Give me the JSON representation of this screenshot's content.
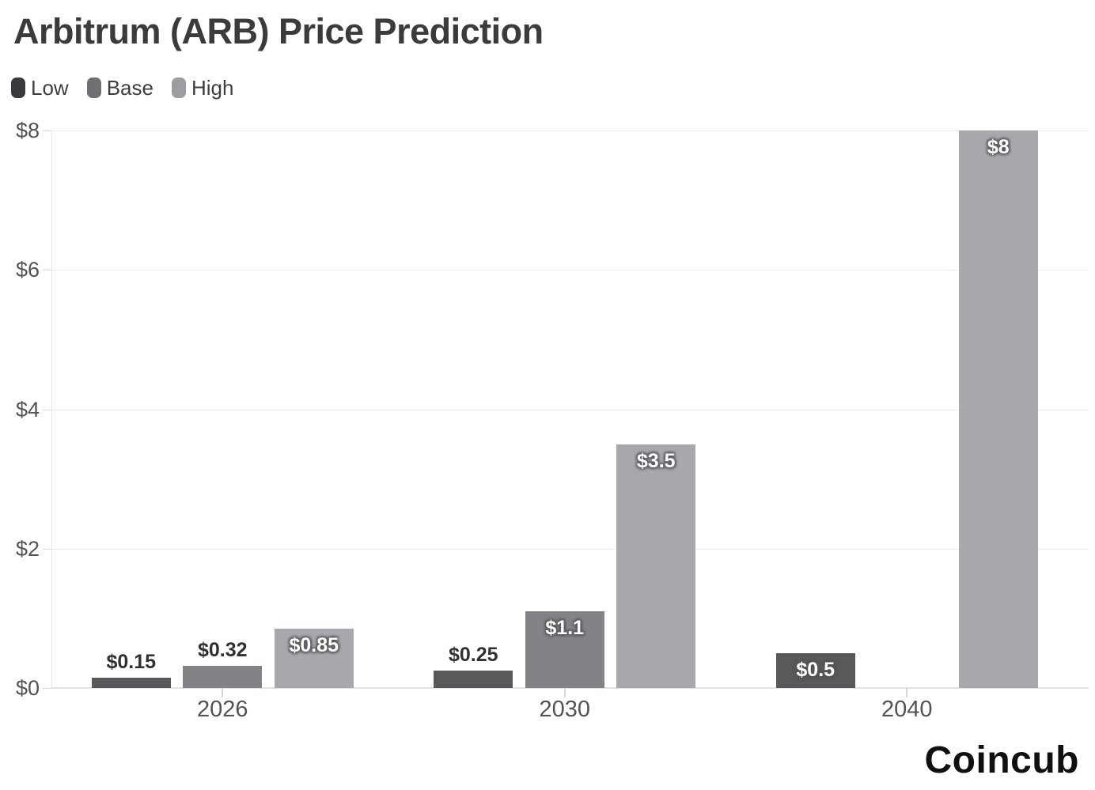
{
  "title": "Arbitrum (ARB) Price Prediction",
  "brand": "Coincub",
  "colors": {
    "background": "#ffffff",
    "title_text": "#3b3b3d",
    "axis_text": "#515359",
    "gridline": "#ededee",
    "axis_line": "#e2e2e4",
    "tick": "#d6d6d8",
    "value_label_dark": "#313133",
    "value_label_light": "#ffffff",
    "brand_text": "#101011"
  },
  "chart_data": {
    "type": "bar",
    "title": "Arbitrum (ARB) Price Prediction",
    "categories": [
      "2026",
      "2030",
      "2040"
    ],
    "series": [
      {
        "name": "Low",
        "legend_color": "#3a3a3e",
        "bar_color": "#59595b",
        "values": [
          0.15,
          0.25,
          0.5
        ],
        "labels": [
          "$0.15",
          "$0.25",
          "$0.5"
        ]
      },
      {
        "name": "Base",
        "legend_color": "#6e7072",
        "bar_color": "#818386",
        "values": [
          0.32,
          1.1,
          null
        ],
        "labels": [
          "$0.32",
          "$1.1",
          null
        ]
      },
      {
        "name": "High",
        "legend_color": "#9b9da0",
        "bar_color": "#a6a8ab",
        "values": [
          0.85,
          3.5,
          8
        ],
        "labels": [
          "$0.85",
          "$3.5",
          "$8"
        ]
      }
    ],
    "y_ticks": [
      {
        "value": 0,
        "label": "$0"
      },
      {
        "value": 2,
        "label": "$2"
      },
      {
        "value": 4,
        "label": "$4"
      },
      {
        "value": 6,
        "label": "$6"
      },
      {
        "value": 8,
        "label": "$8"
      }
    ],
    "ylim": [
      0,
      8
    ],
    "grid": true,
    "legend_position": "top-left"
  }
}
